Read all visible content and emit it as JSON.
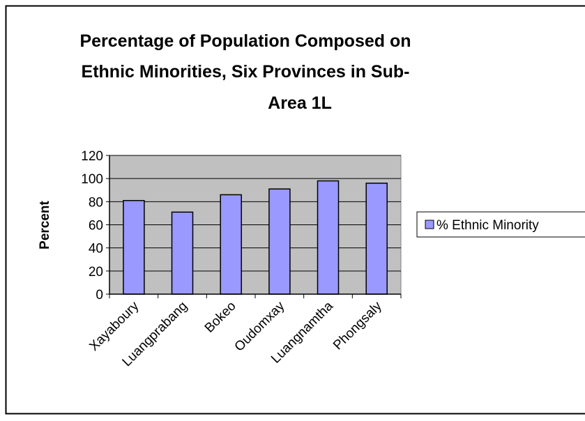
{
  "chart_data": {
    "type": "bar",
    "title_lines": [
      "Percentage of Population Composed on",
      "Ethnic Minorities, Six Provinces in Sub-",
      "Area 1L"
    ],
    "xlabel": "",
    "ylabel": "Percent",
    "ylim": [
      0,
      120
    ],
    "yticks": [
      0,
      20,
      40,
      60,
      80,
      100,
      120
    ],
    "categories": [
      "Xayaboury",
      "Luangprabang",
      "Bokeo",
      "Oudomxay",
      "Luangnamtha",
      "Phongsaly"
    ],
    "series": [
      {
        "name": "% Ethnic Minority",
        "values": [
          81,
          71,
          86,
          91,
          98,
          96
        ],
        "color": "#9999ff"
      }
    ],
    "plot_background": "#c0c0c0",
    "gridlines": true,
    "legend_position": "right"
  }
}
